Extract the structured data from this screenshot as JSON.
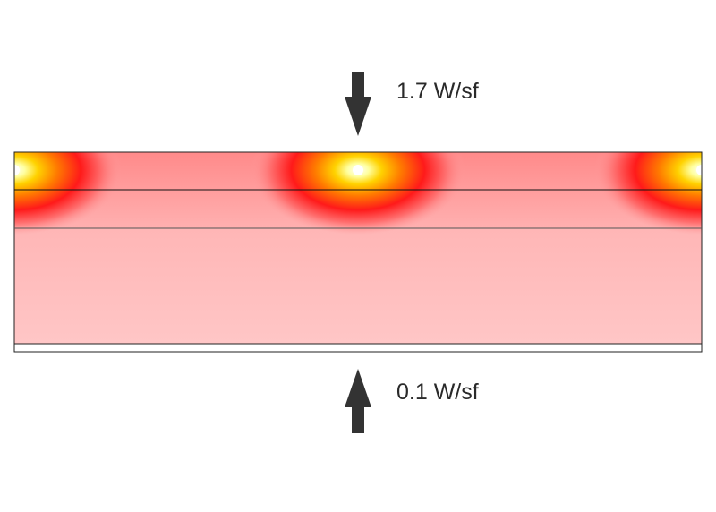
{
  "top_flux": {
    "label": "1.7 W/sf",
    "direction": "down"
  },
  "bottom_flux": {
    "label": "0.1 W/sf",
    "direction": "up"
  },
  "colors": {
    "arrow": "#333333",
    "hot_core": "#ffffff",
    "hot_yellow": "#ffd200",
    "hot_red": "#ff1a1a",
    "warm_pink": "#ffb4b4",
    "cool_pink": "#ffc4c4",
    "outline": "#000000"
  },
  "heat_sources": {
    "count": 3
  }
}
